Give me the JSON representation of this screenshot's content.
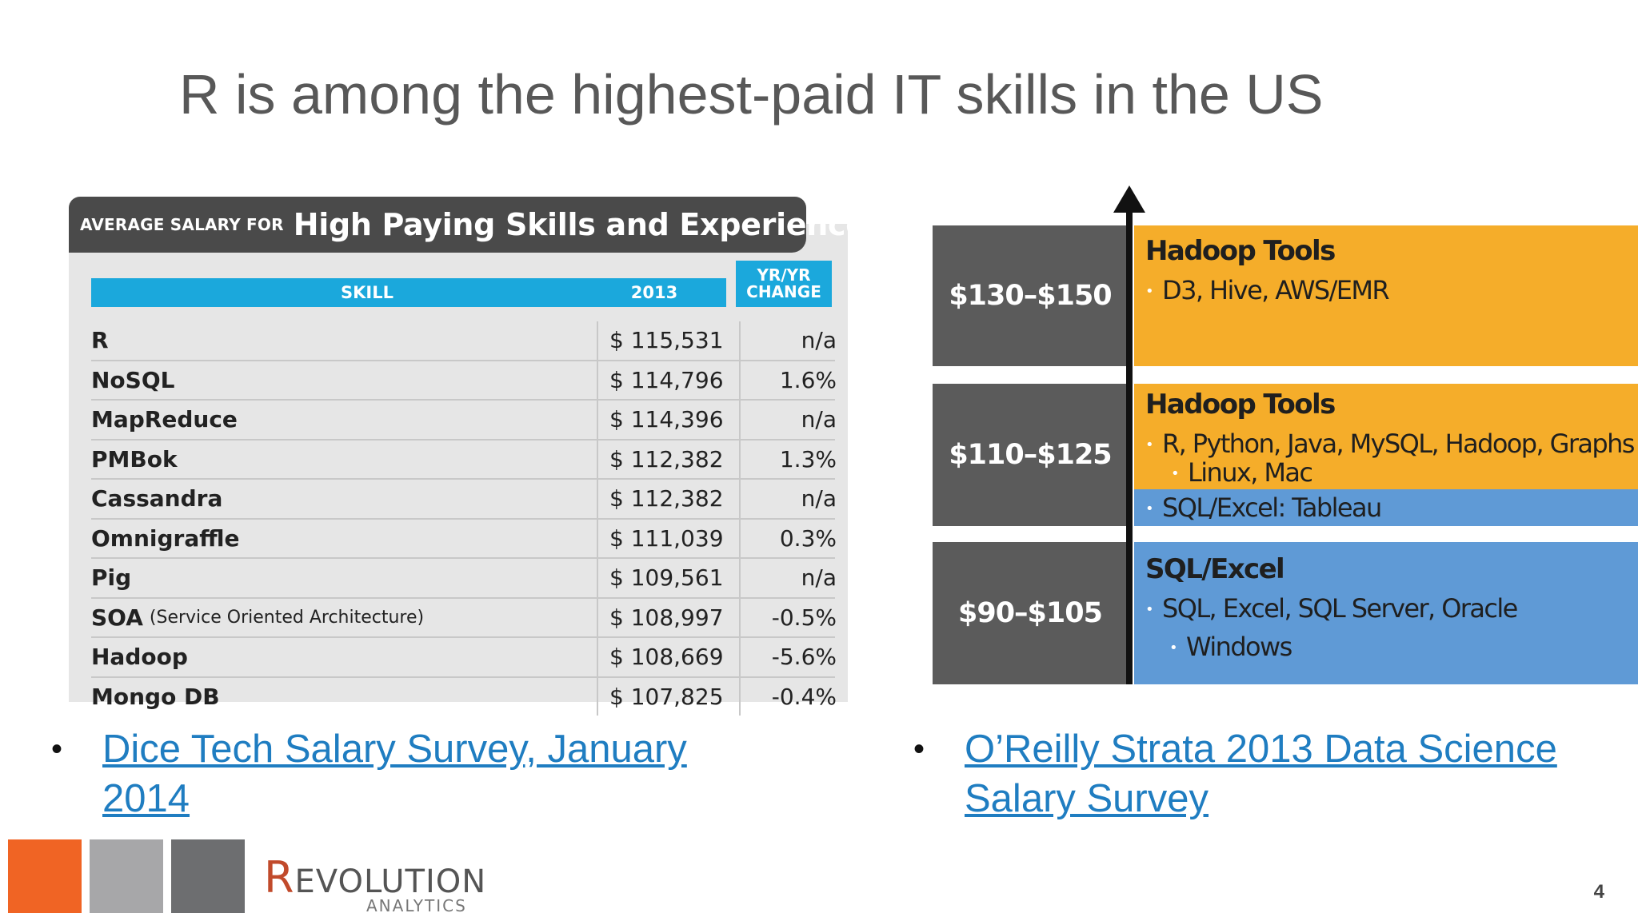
{
  "slide": {
    "title": "R is among the highest-paid IT skills in the US",
    "page_number": "4"
  },
  "salary_table": {
    "banner_small": "AVERAGE SALARY FOR",
    "banner_big": "High Paying Skills and Experience",
    "headers": {
      "skill": "SKILL",
      "year": "2013",
      "change_line1": "YR/YR",
      "change_line2": "CHANGE"
    },
    "rows": [
      {
        "skill": "R",
        "note": "",
        "salary": "$ 115,531",
        "change": "n/a"
      },
      {
        "skill": "NoSQL",
        "note": "",
        "salary": "$ 114,796",
        "change": "1.6%"
      },
      {
        "skill": "MapReduce",
        "note": "",
        "salary": "$ 114,396",
        "change": "n/a"
      },
      {
        "skill": "PMBok",
        "note": "",
        "salary": "$ 112,382",
        "change": "1.3%"
      },
      {
        "skill": "Cassandra",
        "note": "",
        "salary": "$ 112,382",
        "change": "n/a"
      },
      {
        "skill": "Omnigraffle",
        "note": "",
        "salary": "$ 111,039",
        "change": "0.3%"
      },
      {
        "skill": "Pig",
        "note": "",
        "salary": "$ 109,561",
        "change": "n/a"
      },
      {
        "skill": "SOA",
        "note": "(Service Oriented Architecture)",
        "salary": "$ 108,997",
        "change": "-0.5%"
      },
      {
        "skill": "Hadoop",
        "note": "",
        "salary": "$ 108,669",
        "change": "-5.6%"
      },
      {
        "skill": "Mongo DB",
        "note": "",
        "salary": "$ 107,825",
        "change": "-0.4%"
      }
    ]
  },
  "strata_chart": {
    "bands": [
      {
        "range": "$130–$150",
        "title": "Hadoop Tools",
        "items": [
          "D3, Hive, AWS/EMR"
        ]
      },
      {
        "range": "$110–$125",
        "title": "Hadoop Tools",
        "items": [
          "R, Python, Java, MySQL, Hadoop, Graphs",
          "Linux, Mac",
          "SQL/Excel: Tableau"
        ]
      },
      {
        "range": "$90–$105",
        "title": "SQL/Excel",
        "items": [
          "SQL, Excel, SQL Server, Oracle",
          "Windows"
        ]
      }
    ],
    "colors": {
      "orange": "#f5ad2a",
      "blue": "#5f9ad6",
      "label_bg": "#5b5b5b"
    }
  },
  "sources": {
    "bullet": "•",
    "left": {
      "line1": "Dice Tech Salary Survey, January",
      "line2": "2014"
    },
    "right": {
      "line1": "O’Reilly Strata 2013 Data Science",
      "line2": "Salary Survey"
    }
  },
  "footer": {
    "logo_r": "R",
    "logo_rest": "EVOLUTION",
    "logo_sub": "ANALYTICS",
    "squares": [
      "#f06424",
      "#a7a7a9",
      "#6d6e70"
    ]
  }
}
